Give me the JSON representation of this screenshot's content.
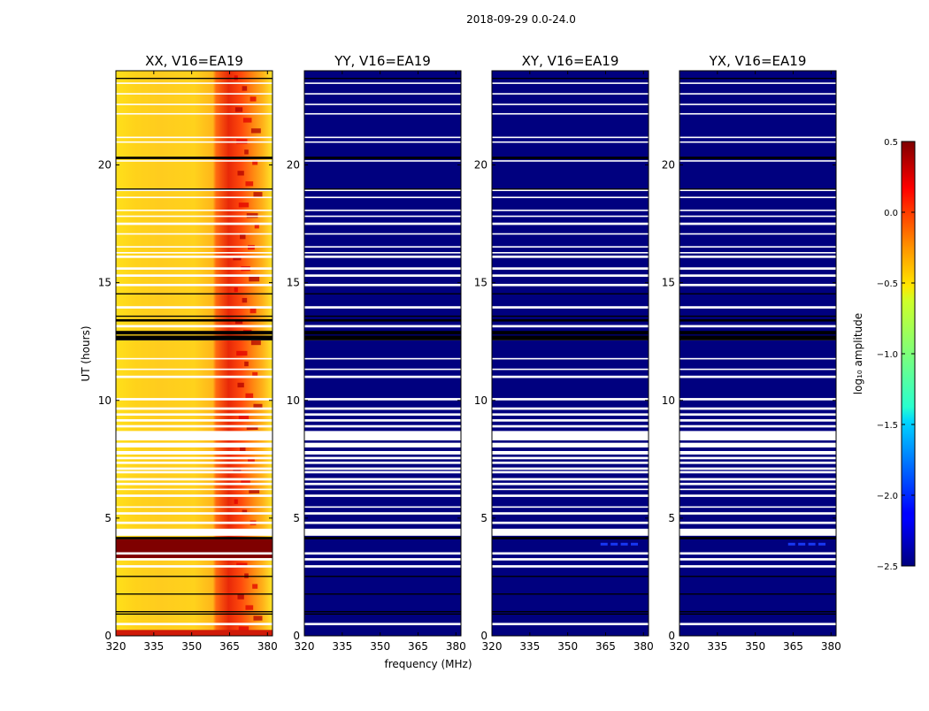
{
  "chart_data": {
    "type": "heatmap",
    "title": "2018-09-29 0.0-24.0",
    "xlabel": "frequency (MHz)",
    "ylabel": "UT (hours)",
    "xlim": [
      320,
      382
    ],
    "ylim": [
      0,
      24
    ],
    "xticks": [
      "320",
      "335",
      "350",
      "365",
      "380"
    ],
    "yticks": [
      "0",
      "5",
      "10",
      "15",
      "20"
    ],
    "panels": [
      {
        "title": "XX, V16=EA19",
        "mode": "XX"
      },
      {
        "title": "YY, V16=EA19",
        "mode": "BLUE"
      },
      {
        "title": "XY, V16=EA19",
        "mode": "BLUE",
        "blip": true
      },
      {
        "title": "YX, V16=EA19",
        "mode": "BLUE",
        "blip": true
      }
    ],
    "colorbar": {
      "label": "log₁₀ amplitude",
      "colormap": "jet",
      "range": [
        -2.5,
        0.5
      ],
      "ticks": [
        "0.5",
        "0.0",
        "−0.5",
        "−1.0",
        "−1.5",
        "−2.0",
        "−2.5"
      ],
      "tick_values": [
        0.5,
        0.0,
        -0.5,
        -1.0,
        -1.5,
        -2.0,
        -2.5
      ]
    },
    "flagged_white_hours": [
      [
        0.45,
        0.55
      ],
      [
        2.9,
        3.0
      ],
      [
        3.2,
        3.3
      ],
      [
        3.45,
        3.55
      ],
      [
        4.25,
        4.55
      ],
      [
        4.75,
        4.85
      ],
      [
        5.15,
        5.25
      ],
      [
        5.45,
        5.5
      ],
      [
        5.9,
        6.0
      ],
      [
        6.2,
        6.25
      ],
      [
        6.4,
        6.5
      ],
      [
        6.6,
        6.7
      ],
      [
        6.9,
        7.0
      ],
      [
        7.05,
        7.15
      ],
      [
        7.3,
        7.4
      ],
      [
        7.5,
        7.6
      ],
      [
        7.7,
        7.85
      ],
      [
        8.0,
        8.2
      ],
      [
        8.3,
        8.7
      ],
      [
        8.85,
        8.95
      ],
      [
        9.1,
        9.2
      ],
      [
        9.35,
        9.45
      ],
      [
        9.6,
        9.7
      ],
      [
        10.0,
        10.1
      ],
      [
        10.95,
        11.05
      ],
      [
        11.3,
        11.35
      ],
      [
        11.75,
        11.8
      ],
      [
        12.55,
        12.65
      ],
      [
        13.1,
        13.2
      ],
      [
        13.9,
        14.0
      ],
      [
        14.85,
        14.95
      ],
      [
        15.25,
        15.35
      ],
      [
        15.55,
        15.65
      ],
      [
        16.05,
        16.15
      ],
      [
        16.25,
        16.3
      ],
      [
        16.5,
        16.55
      ],
      [
        17.05,
        17.1
      ],
      [
        17.45,
        17.55
      ],
      [
        17.8,
        17.85
      ],
      [
        18.05,
        18.1
      ],
      [
        18.6,
        18.65
      ],
      [
        18.9,
        18.95
      ],
      [
        20.15,
        20.2
      ],
      [
        20.95,
        21.0
      ],
      [
        21.15,
        21.2
      ],
      [
        22.15,
        22.2
      ],
      [
        22.55,
        22.6
      ],
      [
        23.0,
        23.05
      ],
      [
        23.45,
        23.5
      ]
    ],
    "flagged_black_hours": [
      [
        0.9,
        0.95
      ],
      [
        1.0,
        1.05
      ],
      [
        1.75,
        1.8
      ],
      [
        2.5,
        2.55
      ],
      [
        4.1,
        4.2
      ],
      [
        12.55,
        12.75
      ],
      [
        12.8,
        12.95
      ],
      [
        13.35,
        13.45
      ],
      [
        13.55,
        13.6
      ],
      [
        14.5,
        14.55
      ],
      [
        18.95,
        19.0
      ],
      [
        20.25,
        20.35
      ],
      [
        23.65,
        23.7
      ]
    ]
  }
}
